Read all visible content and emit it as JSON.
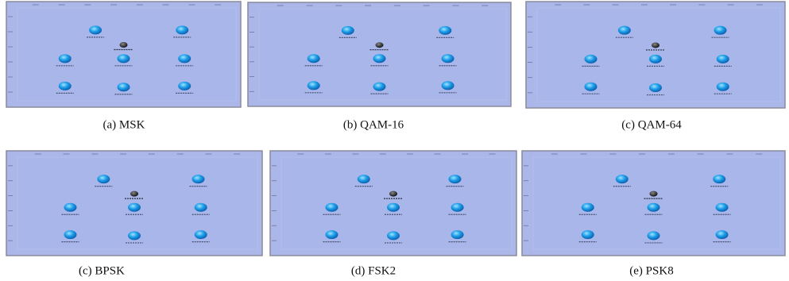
{
  "panels": [
    {
      "caption": "(a) MSK"
    },
    {
      "caption": "(b) QAM-16"
    },
    {
      "caption": "(c) QAM-64"
    },
    {
      "caption": "(c) BPSK"
    },
    {
      "caption": "(d) FSK2"
    },
    {
      "caption": "(e) PSK8"
    }
  ]
}
